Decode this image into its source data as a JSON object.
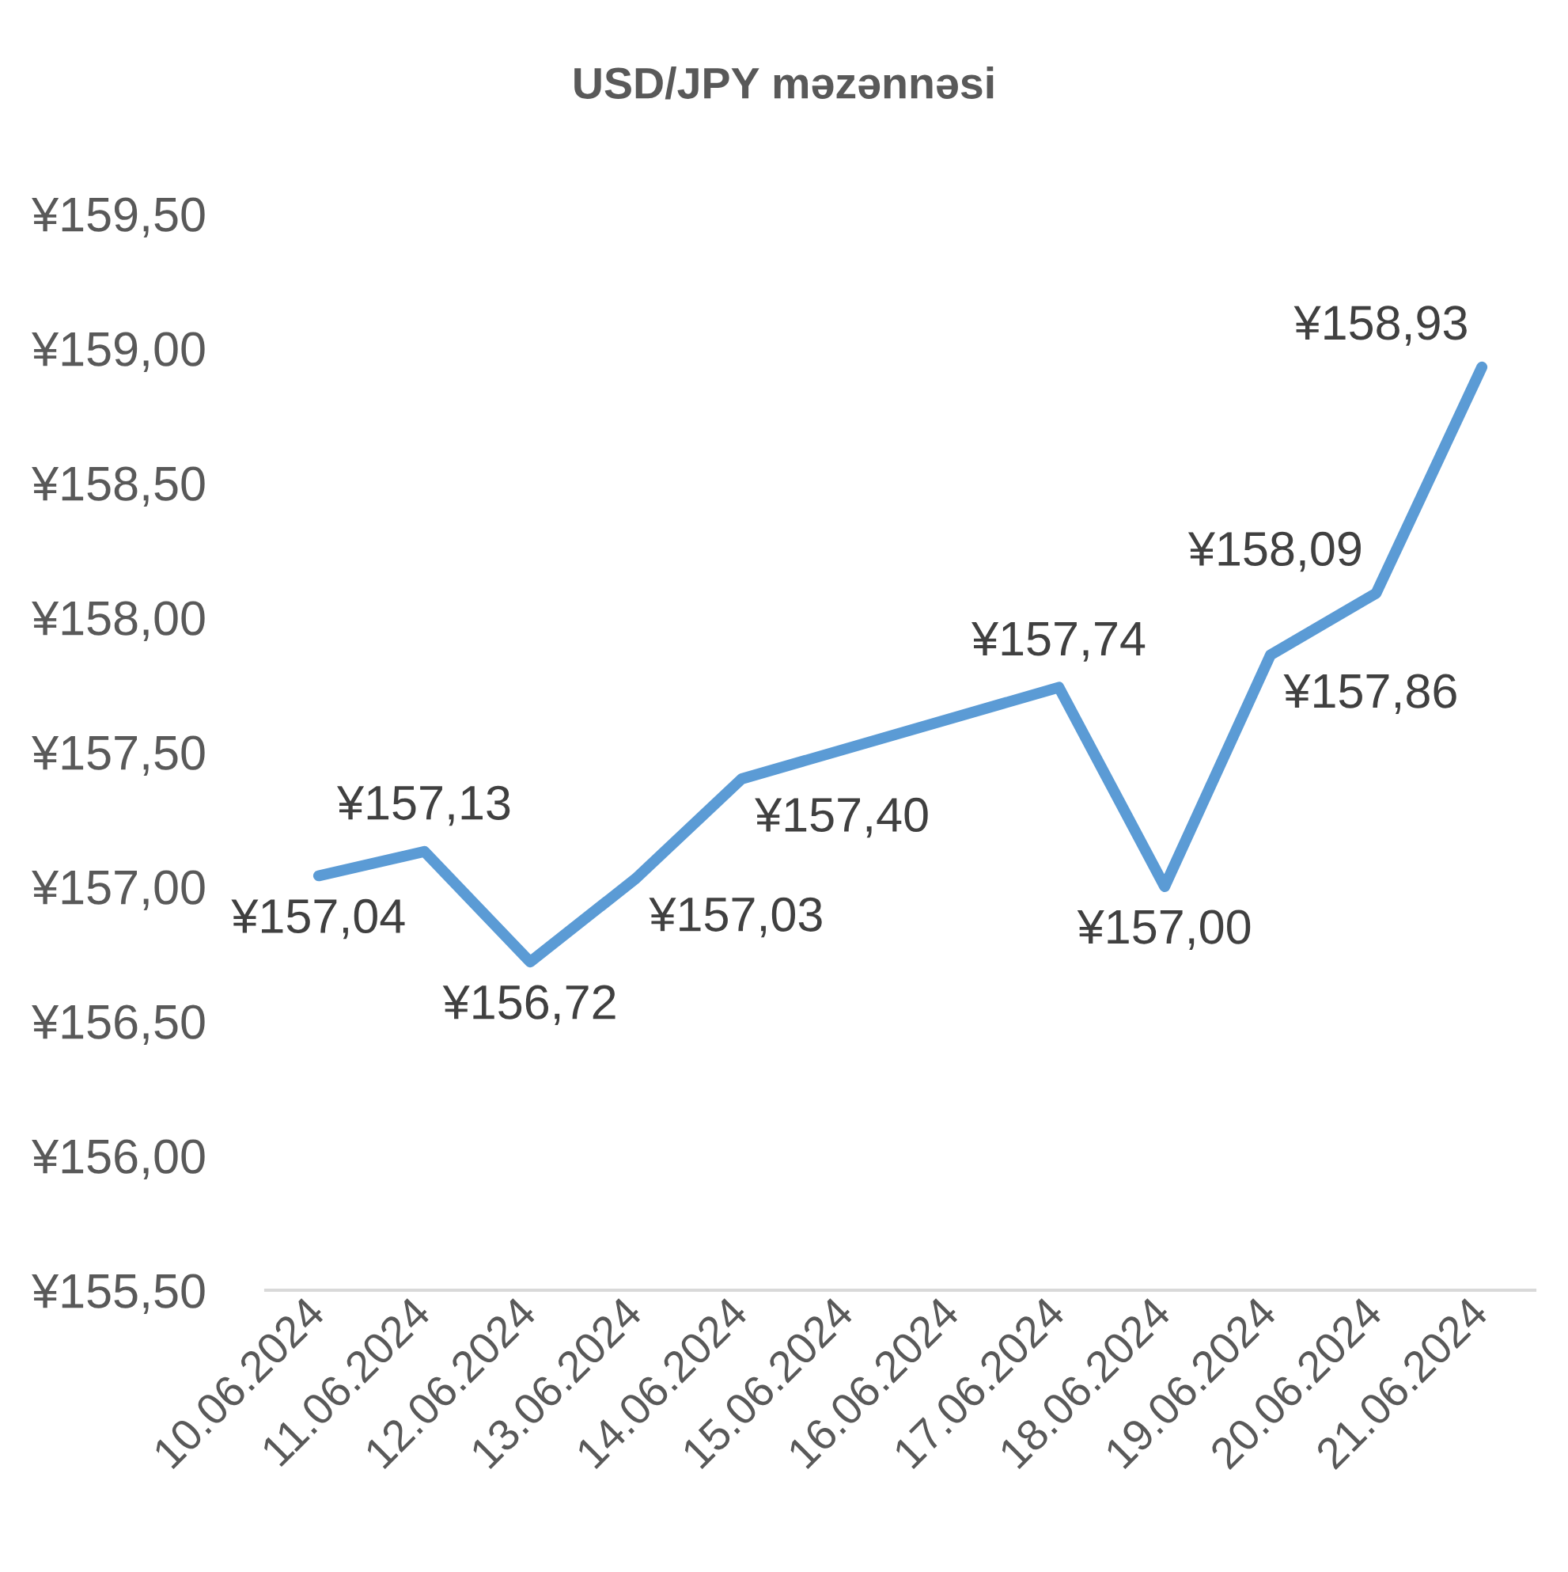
{
  "chart_data": {
    "type": "line",
    "title": "USD/JPY məzənnəsi",
    "categories": [
      "10.06.2024",
      "11.06.2024",
      "12.06.2024",
      "13.06.2024",
      "14.06.2024",
      "15.06.2024",
      "16.06.2024",
      "17.06.2024",
      "18.06.2024",
      "19.06.2024",
      "20.06.2024",
      "21.06.2024"
    ],
    "series": [
      {
        "color": "#5b9bd5",
        "values": [
          157.04,
          157.13,
          156.72,
          157.03,
          157.4,
          null,
          null,
          157.74,
          157.0,
          157.86,
          158.09,
          158.93
        ],
        "value_labels": [
          "¥157,04",
          "¥157,13",
          "¥156,72",
          "¥157,03",
          "¥157,40",
          null,
          null,
          "¥157,74",
          "¥157,00",
          "¥157,86",
          "¥158,09",
          "¥158,93"
        ]
      }
    ],
    "ylim": [
      155.5,
      159.5
    ],
    "yticks": [
      {
        "value": 155.5,
        "label": "¥155,50"
      },
      {
        "value": 156.0,
        "label": "¥156,00"
      },
      {
        "value": 156.5,
        "label": "¥156,50"
      },
      {
        "value": 157.0,
        "label": "¥157,00"
      },
      {
        "value": 157.5,
        "label": "¥157,50"
      },
      {
        "value": 158.0,
        "label": "¥158,00"
      },
      {
        "value": 158.5,
        "label": "¥158,50"
      },
      {
        "value": 159.0,
        "label": "¥159,00"
      },
      {
        "value": 159.5,
        "label": "¥159,50"
      }
    ],
    "grid": false,
    "line_style": "solid"
  }
}
